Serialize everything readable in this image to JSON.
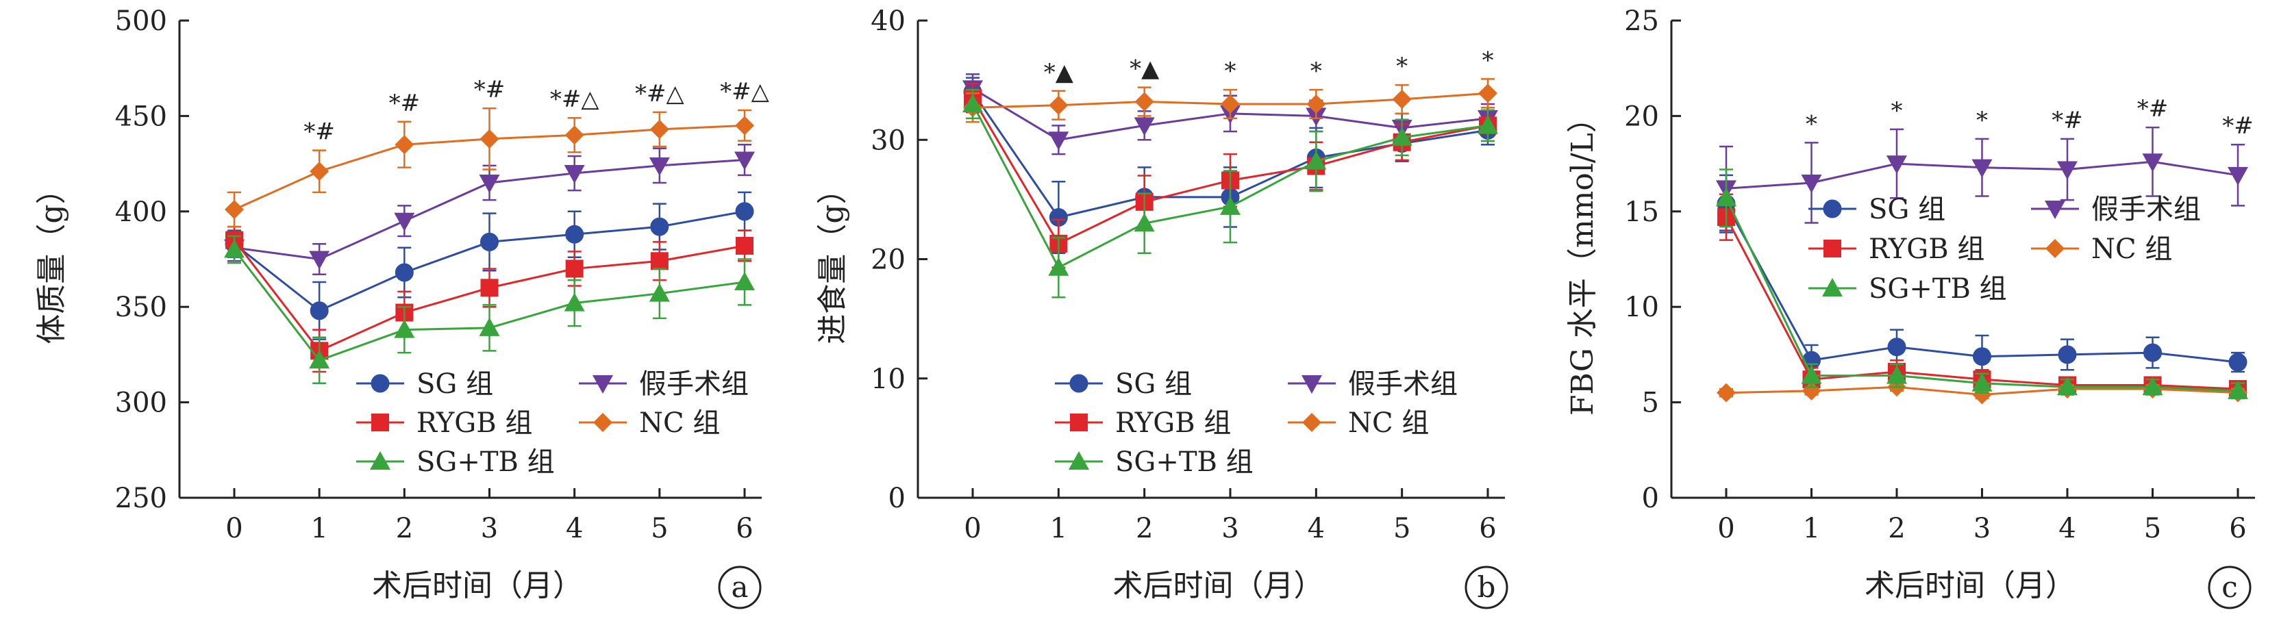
{
  "chart_data": [
    {
      "type": "line",
      "panel_label": "a",
      "xlabel": "术后时间（月）",
      "ylabel": "体质量（g）",
      "x": [
        0,
        1,
        2,
        3,
        4,
        5,
        6
      ],
      "ylim": [
        250,
        500
      ],
      "yticks": [
        250,
        300,
        350,
        400,
        450,
        500
      ],
      "legend_position": "bottom-right",
      "significance": [
        "",
        "*#",
        "*#",
        "*#",
        "*#△",
        "*#△",
        "*#△"
      ],
      "series": [
        {
          "name": "SG 组",
          "color": "#2e4da0",
          "marker": "circle",
          "values": [
            383,
            348,
            368,
            384,
            388,
            392,
            400
          ],
          "errors": [
            7,
            15,
            13,
            15,
            12,
            12,
            10
          ]
        },
        {
          "name": "假手术组",
          "color": "#6a3d9a",
          "marker": "triangle-down",
          "values": [
            381,
            375,
            395,
            415,
            420,
            424,
            427
          ],
          "errors": [
            7,
            8,
            8,
            9,
            9,
            9,
            8
          ]
        },
        {
          "name": "RYGB 组",
          "color": "#e0262a",
          "marker": "square",
          "values": [
            385,
            327,
            347,
            360,
            370,
            374,
            382
          ],
          "errors": [
            7,
            11,
            11,
            10,
            9,
            10,
            8
          ]
        },
        {
          "name": "NC 组",
          "color": "#e06d1f",
          "marker": "diamond",
          "values": [
            401,
            421,
            435,
            438,
            440,
            443,
            445
          ],
          "errors": [
            9,
            11,
            12,
            16,
            9,
            9,
            8
          ]
        },
        {
          "name": "SG+TB 组",
          "color": "#38a53c",
          "marker": "triangle-up",
          "values": [
            380,
            322,
            338,
            339,
            352,
            357,
            363
          ],
          "errors": [
            7,
            12,
            12,
            12,
            12,
            13,
            12
          ]
        }
      ]
    },
    {
      "type": "line",
      "panel_label": "b",
      "xlabel": "术后时间（月）",
      "ylabel": "进食量（g）",
      "x": [
        0,
        1,
        2,
        3,
        4,
        5,
        6
      ],
      "ylim": [
        0,
        40
      ],
      "yticks": [
        0,
        10,
        20,
        30,
        40
      ],
      "legend_position": "bottom-right",
      "significance": [
        "",
        "*▲",
        "*▲",
        "*",
        "*",
        "*",
        "*"
      ],
      "series": [
        {
          "name": "SG 组",
          "color": "#2e4da0",
          "marker": "circle",
          "values": [
            34,
            23.5,
            25.2,
            25.2,
            28.5,
            29.7,
            30.8
          ],
          "errors": [
            1.2,
            3,
            2.5,
            2.5,
            2.5,
            1.5,
            1.2
          ]
        },
        {
          "name": "假手术组",
          "color": "#6a3d9a",
          "marker": "triangle-down",
          "values": [
            34.3,
            30,
            31.2,
            32.2,
            32,
            31,
            31.8
          ],
          "errors": [
            1.2,
            1.2,
            1.2,
            1.5,
            1.3,
            1.2,
            1.2
          ]
        },
        {
          "name": "RYGB 组",
          "color": "#e0262a",
          "marker": "square",
          "values": [
            33.5,
            21.3,
            24.8,
            26.6,
            27.8,
            29.8,
            31.2
          ],
          "errors": [
            1.2,
            2,
            2.2,
            2.2,
            2,
            1.5,
            1.3
          ]
        },
        {
          "name": "NC 组",
          "color": "#e06d1f",
          "marker": "diamond",
          "values": [
            32.7,
            32.9,
            33.2,
            33,
            33,
            33.4,
            33.9
          ],
          "errors": [
            1.2,
            1.2,
            1.2,
            1.2,
            1.2,
            1.2,
            1.2
          ]
        },
        {
          "name": "SG+TB 组",
          "color": "#38a53c",
          "marker": "triangle-up",
          "values": [
            33,
            19.3,
            23,
            24.4,
            28.2,
            30.2,
            31.2
          ],
          "errors": [
            1.2,
            2.5,
            2.5,
            3,
            2.5,
            1.5,
            1.3
          ]
        }
      ]
    },
    {
      "type": "line",
      "panel_label": "c",
      "xlabel": "术后时间（月）",
      "ylabel": "FBG 水平（mmol/L）",
      "x": [
        0,
        1,
        2,
        3,
        4,
        5,
        6
      ],
      "ylim": [
        0,
        25
      ],
      "yticks": [
        0,
        5,
        10,
        15,
        20,
        25
      ],
      "legend_position": "right",
      "significance": [
        "",
        "*",
        "*",
        "*",
        "*#",
        "*#",
        "*#"
      ],
      "series": [
        {
          "name": "SG 组",
          "color": "#2e4da0",
          "marker": "circle",
          "values": [
            15.4,
            7.2,
            7.9,
            7.4,
            7.5,
            7.6,
            7.1
          ],
          "errors": [
            1.5,
            0.8,
            0.9,
            1.1,
            0.8,
            0.8,
            0.5
          ]
        },
        {
          "name": "假手术组",
          "color": "#6a3d9a",
          "marker": "triangle-down",
          "values": [
            16.2,
            16.5,
            17.5,
            17.3,
            17.2,
            17.6,
            16.9
          ],
          "errors": [
            2.2,
            2.1,
            1.8,
            1.5,
            1.6,
            1.8,
            1.6
          ]
        },
        {
          "name": "RYGB 组",
          "color": "#e0262a",
          "marker": "square",
          "values": [
            14.7,
            6.2,
            6.6,
            6.2,
            5.9,
            5.9,
            5.7
          ],
          "errors": [
            1.2,
            0.6,
            0.6,
            0.5,
            0.4,
            0.4,
            0.3
          ]
        },
        {
          "name": "NC 组",
          "color": "#e06d1f",
          "marker": "diamond",
          "values": [
            5.5,
            5.6,
            5.8,
            5.4,
            5.7,
            5.7,
            5.5
          ],
          "errors": [
            0.2,
            0.2,
            0.2,
            0.2,
            0.2,
            0.2,
            0.2
          ]
        },
        {
          "name": "SG+TB 组",
          "color": "#38a53c",
          "marker": "triangle-up",
          "values": [
            15.7,
            6.4,
            6.4,
            6.0,
            5.8,
            5.8,
            5.6
          ],
          "errors": [
            1.5,
            0.6,
            0.6,
            0.5,
            0.4,
            0.4,
            0.4
          ]
        }
      ]
    }
  ]
}
